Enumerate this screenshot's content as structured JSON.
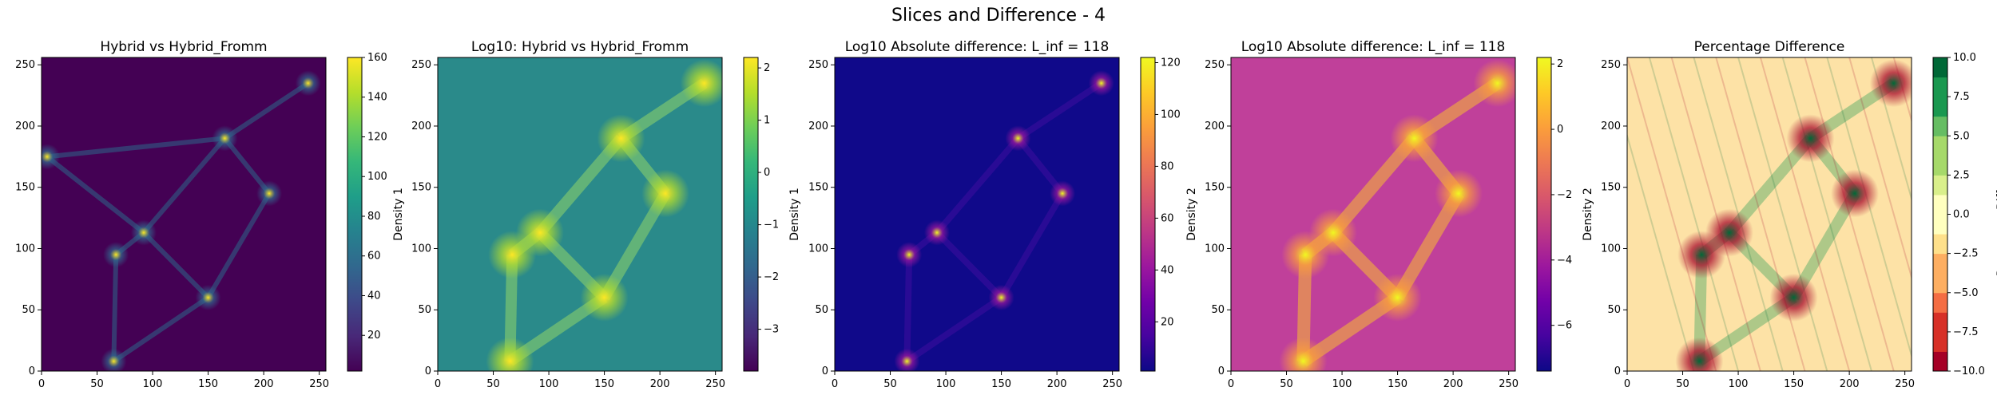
{
  "figure": {
    "suptitle": "Slices and Difference - 4"
  },
  "colors": {
    "viridis": [
      "#440154",
      "#482878",
      "#3e4989",
      "#31688e",
      "#26828e",
      "#1f9e89",
      "#35b779",
      "#6ece58",
      "#b5de2b",
      "#fde725"
    ],
    "plasma": [
      "#0d0887",
      "#46039f",
      "#7201a8",
      "#9c179e",
      "#bd3786",
      "#d8576b",
      "#ed7953",
      "#fb9f3a",
      "#fdca26",
      "#f0f921"
    ],
    "rdylgn": [
      "#a50026",
      "#d73027",
      "#f46d43",
      "#fdae61",
      "#fee08b",
      "#ffffbf",
      "#d9ef8b",
      "#a6d96a",
      "#66bd63",
      "#1a9850",
      "#006837"
    ]
  },
  "chart_data": [
    {
      "type": "heatmap",
      "title": "Hybrid vs Hybrid_Fromm",
      "xlim": [
        0,
        256
      ],
      "ylim": [
        0,
        256
      ],
      "xticks": [
        0,
        50,
        100,
        150,
        200,
        250
      ],
      "yticks": [
        0,
        50,
        100,
        150,
        200,
        250
      ],
      "background_color": "#440154",
      "colormap": "viridis",
      "colorbar": {
        "label": "Density 1",
        "range": [
          2,
          160
        ],
        "ticks": [
          20,
          40,
          60,
          80,
          100,
          120,
          140,
          160
        ],
        "discrete": false
      },
      "clumps": [
        {
          "x": 92,
          "y": 113,
          "peak": 120
        },
        {
          "x": 67,
          "y": 95,
          "peak": 130
        },
        {
          "x": 150,
          "y": 60,
          "peak": 140
        },
        {
          "x": 165,
          "y": 190,
          "peak": 110
        },
        {
          "x": 205,
          "y": 145,
          "peak": 90
        },
        {
          "x": 240,
          "y": 235,
          "peak": 80
        },
        {
          "x": 65,
          "y": 8,
          "peak": 70
        },
        {
          "x": 5,
          "y": 175,
          "peak": 40
        }
      ]
    },
    {
      "type": "heatmap",
      "title": "Log10: Hybrid vs Hybrid_Fromm",
      "xlim": [
        0,
        256
      ],
      "ylim": [
        0,
        256
      ],
      "xticks": [
        0,
        50,
        100,
        150,
        200,
        250
      ],
      "yticks": [
        0,
        50,
        100,
        150,
        200,
        250
      ],
      "background_color": "#2a8a8a",
      "colormap": "viridis",
      "colorbar": {
        "label": "Density 1",
        "range": [
          -3.8,
          2.2
        ],
        "ticks": [
          -3,
          -2,
          -1,
          0,
          1,
          2
        ],
        "discrete": false
      },
      "clumps": [
        {
          "x": 92,
          "y": 113,
          "peak": 1.5
        },
        {
          "x": 67,
          "y": 95,
          "peak": 1.5
        },
        {
          "x": 150,
          "y": 60,
          "peak": 1.8
        },
        {
          "x": 165,
          "y": 190,
          "peak": 1.5
        },
        {
          "x": 205,
          "y": 145,
          "peak": 1.2
        },
        {
          "x": 240,
          "y": 235,
          "peak": 1.2
        },
        {
          "x": 65,
          "y": 8,
          "peak": 1.2
        }
      ]
    },
    {
      "type": "heatmap",
      "title": "Log10 Absolute difference: L_inf = 118",
      "xlim": [
        0,
        256
      ],
      "ylim": [
        0,
        256
      ],
      "xticks": [
        0,
        50,
        100,
        150,
        200,
        250
      ],
      "yticks": [
        0,
        50,
        100,
        150,
        200,
        250
      ],
      "background_color": "#10098a",
      "colormap": "plasma",
      "colorbar": {
        "label": "Density 2",
        "range": [
          1,
          122
        ],
        "ticks": [
          20,
          40,
          60,
          80,
          100,
          120
        ],
        "discrete": false
      },
      "clumps": [
        {
          "x": 92,
          "y": 113,
          "peak": 60
        },
        {
          "x": 67,
          "y": 95,
          "peak": 70
        },
        {
          "x": 150,
          "y": 60,
          "peak": 80
        },
        {
          "x": 165,
          "y": 190,
          "peak": 60
        },
        {
          "x": 205,
          "y": 145,
          "peak": 30
        },
        {
          "x": 240,
          "y": 235,
          "peak": 40
        },
        {
          "x": 65,
          "y": 8,
          "peak": 25
        }
      ]
    },
    {
      "type": "heatmap",
      "title": "Log10 Absolute difference: L_inf = 118",
      "xlim": [
        0,
        256
      ],
      "ylim": [
        0,
        256
      ],
      "xticks": [
        0,
        50,
        100,
        150,
        200,
        250
      ],
      "yticks": [
        0,
        50,
        100,
        150,
        200,
        250
      ],
      "background_color": "#c0409a",
      "colormap": "plasma",
      "colorbar": {
        "label": "Density 2",
        "range": [
          -7.4,
          2.2
        ],
        "ticks": [
          -6,
          -4,
          -2,
          0,
          2
        ],
        "discrete": false
      },
      "clumps": [
        {
          "x": 92,
          "y": 113,
          "peak": 1.8
        },
        {
          "x": 67,
          "y": 95,
          "peak": 1.8
        },
        {
          "x": 150,
          "y": 60,
          "peak": 2.0
        },
        {
          "x": 165,
          "y": 190,
          "peak": 1.8
        },
        {
          "x": 205,
          "y": 145,
          "peak": 1.5
        },
        {
          "x": 240,
          "y": 235,
          "peak": 1.5
        },
        {
          "x": 65,
          "y": 8,
          "peak": 1.5
        }
      ]
    },
    {
      "type": "heatmap",
      "title": "Percentage Difference",
      "xlim": [
        0,
        256
      ],
      "ylim": [
        0,
        256
      ],
      "xticks": [
        0,
        50,
        100,
        150,
        200,
        250
      ],
      "yticks": [
        0,
        50,
        100,
        150,
        200,
        250
      ],
      "background_color": "#fde2a6",
      "colormap": "rdylgn",
      "colorbar": {
        "label": "Percentage Difference",
        "range": [
          -10,
          10
        ],
        "ticks": [
          "10.0",
          "7.5",
          "5.0",
          "2.5",
          "0.0",
          "−2.5",
          "−5.0",
          "−7.5",
          "−10.0"
        ],
        "discrete": true
      },
      "clumps": [
        {
          "x": 92,
          "y": 113,
          "peak": 10
        },
        {
          "x": 67,
          "y": 95,
          "peak": -10
        },
        {
          "x": 150,
          "y": 60,
          "peak": 10
        },
        {
          "x": 165,
          "y": 190,
          "peak": -10
        },
        {
          "x": 205,
          "y": 145,
          "peak": 10
        },
        {
          "x": 240,
          "y": 235,
          "peak": -10
        },
        {
          "x": 65,
          "y": 8,
          "peak": 10
        }
      ]
    }
  ]
}
